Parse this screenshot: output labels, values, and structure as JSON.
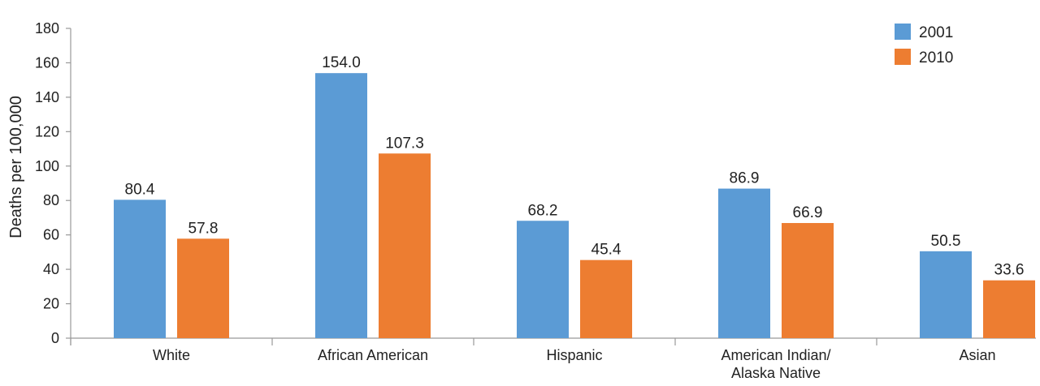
{
  "chart_data": {
    "type": "bar",
    "categories": [
      [
        "White"
      ],
      [
        "African American"
      ],
      [
        "Hispanic"
      ],
      [
        "American Indian/",
        "Alaska Native"
      ],
      [
        "Asian"
      ]
    ],
    "series": [
      {
        "name": "2001",
        "color": "#5b9bd5",
        "values": [
          80.4,
          154.0,
          68.2,
          86.9,
          50.5
        ]
      },
      {
        "name": "2010",
        "color": "#ed7d31",
        "values": [
          57.8,
          107.3,
          45.4,
          66.9,
          33.6
        ]
      }
    ],
    "data_labels": [
      [
        "80.4",
        "154.0",
        "68.2",
        "86.9",
        "50.5"
      ],
      [
        "57.8",
        "107.3",
        "45.4",
        "66.9",
        "33.6"
      ]
    ],
    "ylabel": "Deaths per 100,000",
    "xlabel": "",
    "title": "",
    "ylim": [
      0,
      180
    ],
    "yticks": [
      0,
      20,
      40,
      60,
      80,
      100,
      120,
      140,
      160,
      180
    ],
    "grid": false,
    "legend_position": "top-right"
  }
}
